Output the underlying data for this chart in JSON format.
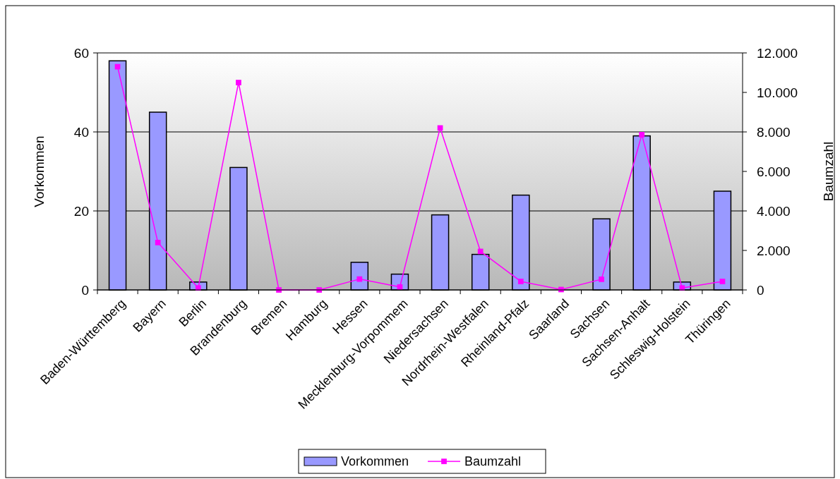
{
  "chart_data": {
    "type": "bar",
    "categories": [
      "Baden-Württemberg",
      "Bayern",
      "Berlin",
      "Brandenburg",
      "Bremen",
      "Hamburg",
      "Hessen",
      "Mecklenburg-Vorpommem",
      "Niedersachsen",
      "Nordrhein-Westfalen",
      "Rheinland-Pfalz",
      "Saarland",
      "Sachsen",
      "Sachsen-Anhalt",
      "Schleswig-Holstein",
      "Thüringen"
    ],
    "series": [
      {
        "name": "Vorkommen",
        "color": "#9999ff",
        "values": [
          58,
          45,
          2,
          31,
          0,
          0,
          7,
          4,
          19,
          9,
          24,
          0,
          18,
          39,
          2,
          25
        ]
      },
      {
        "name": "Baumzahl",
        "type": "line",
        "axis": "y2",
        "color": "#ff00ff",
        "values": [
          11300,
          2400,
          100,
          10500,
          0,
          0,
          550,
          150,
          8200,
          1950,
          430,
          20,
          540,
          7860,
          100,
          430
        ]
      }
    ],
    "ylabel": "Vorkommen",
    "y2label": "Baumzahl",
    "ylim": [
      0,
      60
    ],
    "yticks": [
      0,
      20,
      40,
      60
    ],
    "y2lim": [
      0,
      12000
    ],
    "y2ticks": [
      0,
      {
        "value": 2000,
        "label": "2.000"
      },
      {
        "value": 4000,
        "label": "4.000"
      },
      {
        "value": 6000,
        "label": "6.000"
      },
      {
        "value": 8000,
        "label": "8.000"
      },
      {
        "value": 10000,
        "label": "10.000"
      },
      {
        "value": 12000,
        "label": "12.000"
      }
    ],
    "grid": "y",
    "legend": "bottom",
    "marker": "square"
  }
}
